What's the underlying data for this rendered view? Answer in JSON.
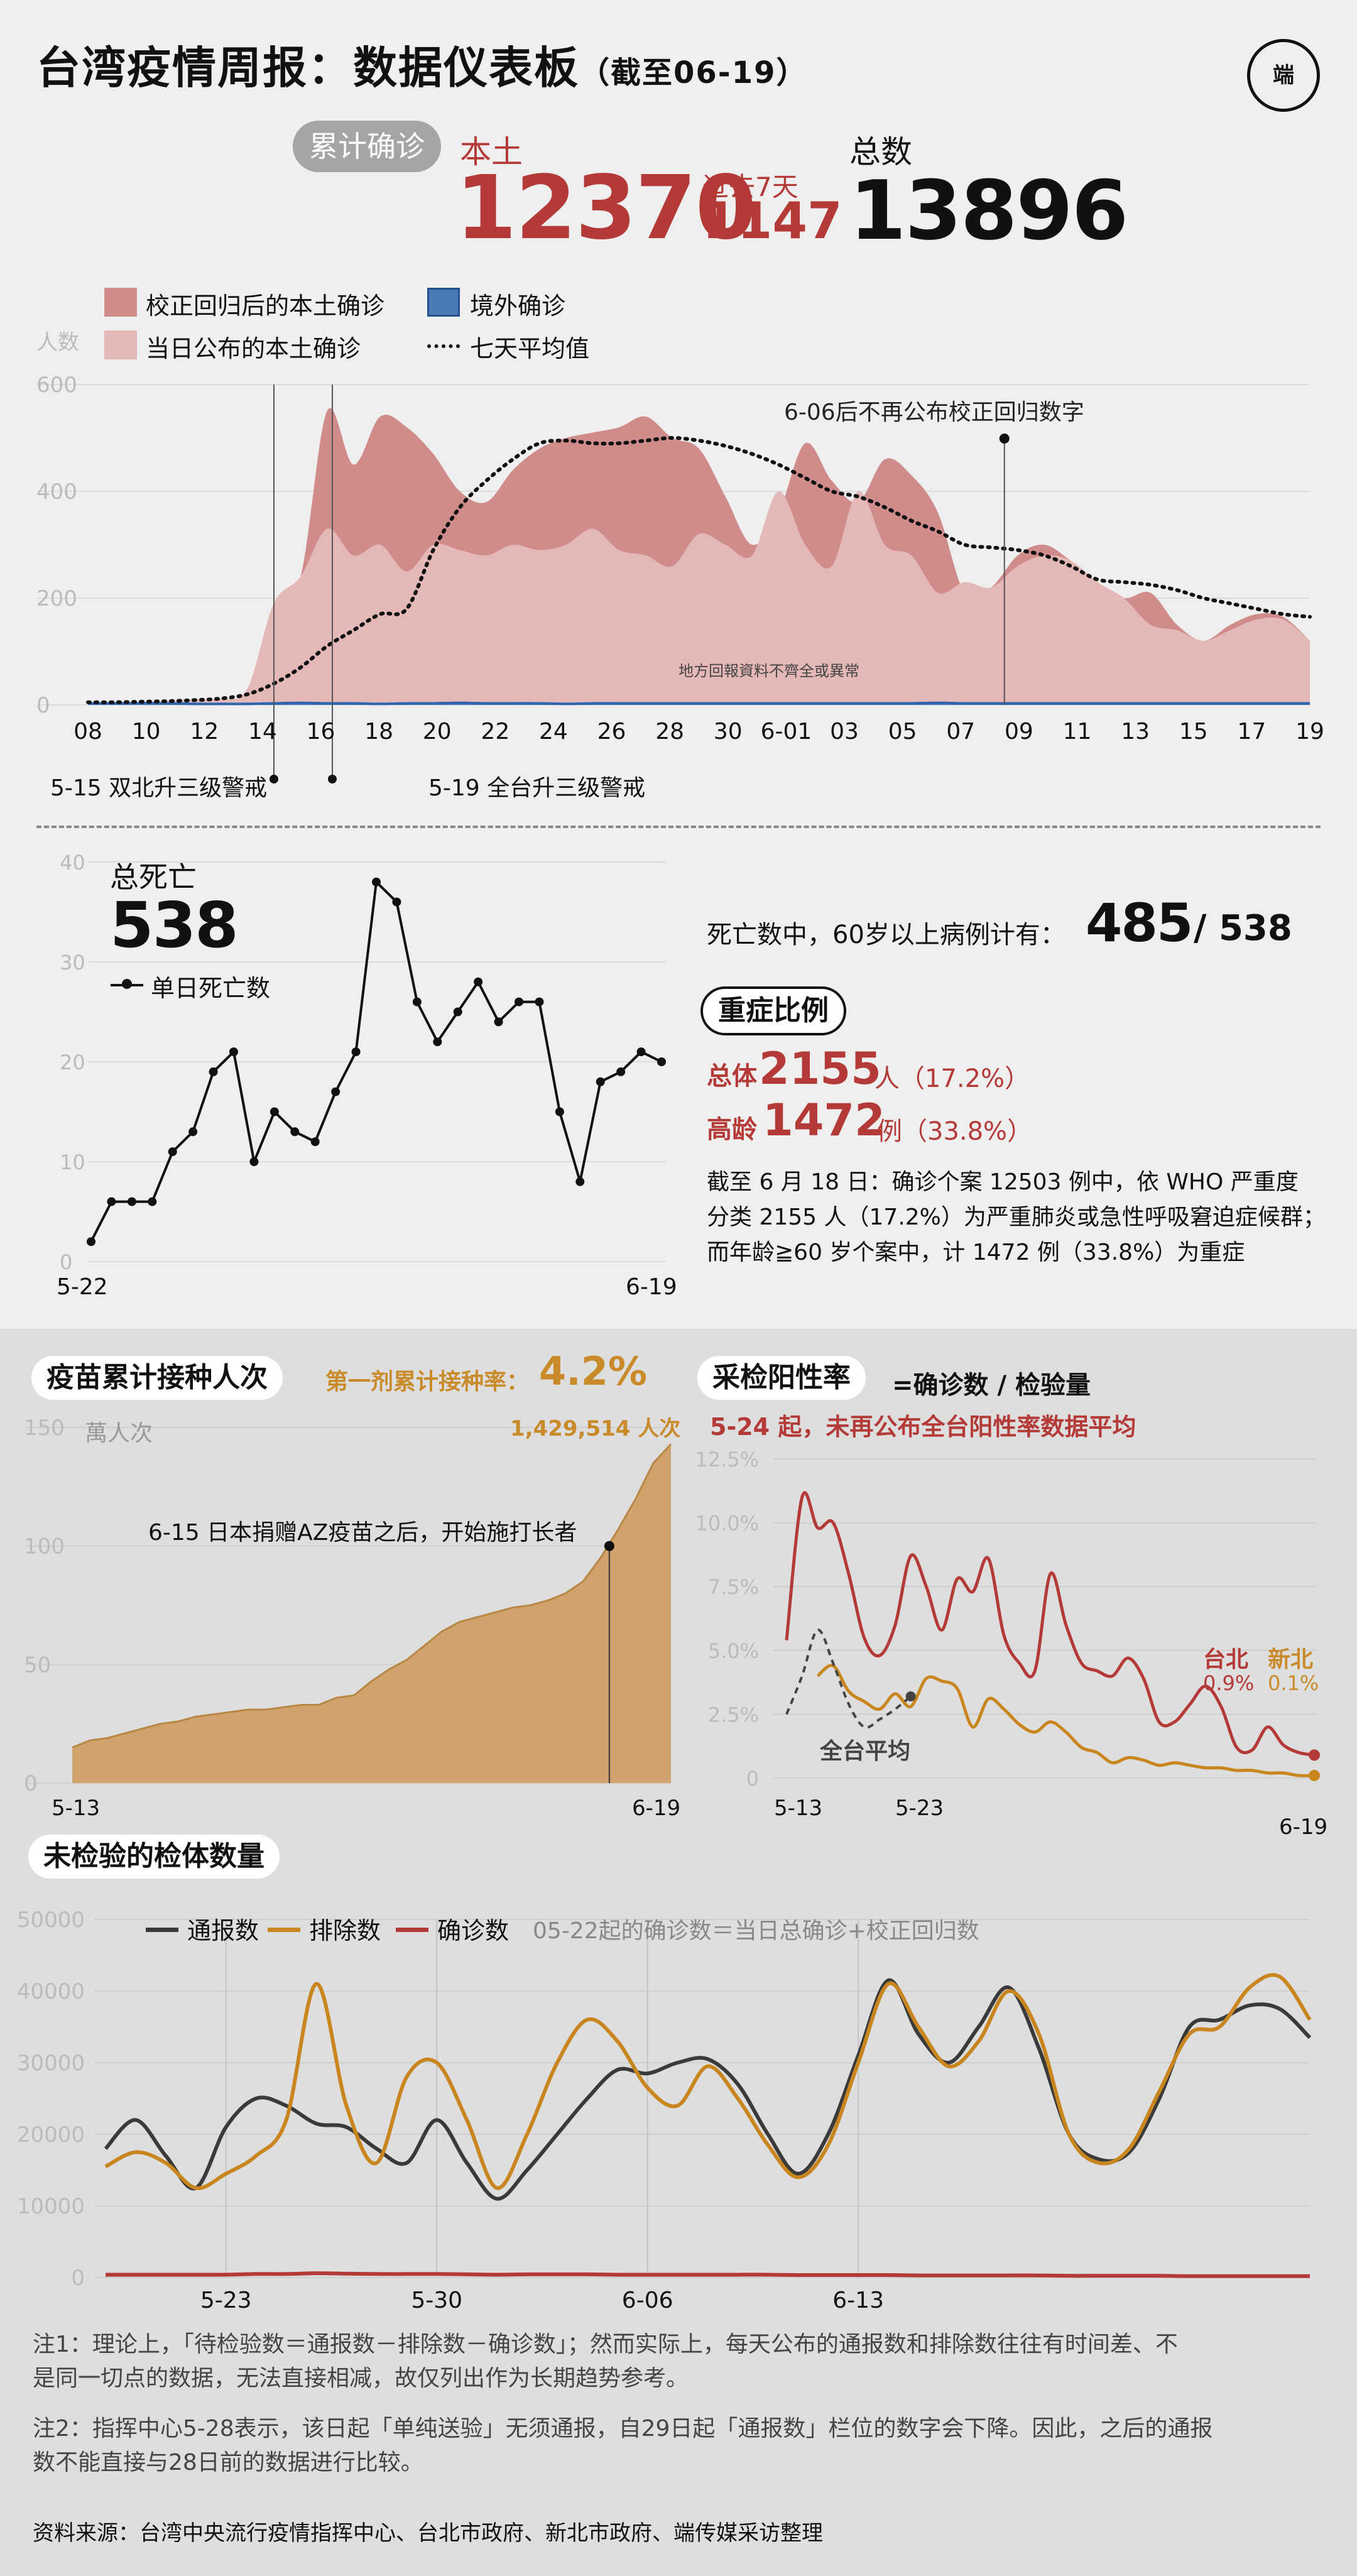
{
  "header": {
    "title": "台湾疫情周报：数据仪表板",
    "date_label": "（截至06-19）",
    "logo_text": "端"
  },
  "summary": {
    "cumulative_label": "累计确诊",
    "local_label": "本土",
    "local_value": "12370",
    "past7_label": "过去7天",
    "past7_value": "1147",
    "total_label": "总数",
    "total_value": "13896"
  },
  "chart_cases": {
    "legend": {
      "corrected": "校正回归后的本土确诊",
      "imported": "境外确诊",
      "reported": "当日公布的本土确诊",
      "avg7": "七天平均值"
    },
    "colors": {
      "corrected": "#cf8c8b",
      "reported": "#e3b8b6",
      "imported": "#4a7bb8",
      "avg": "#111111"
    },
    "y_unit": "人数",
    "annotation_stop": "6-06后不再公布校正回归数字",
    "annotation_incomplete": "地方回報資料不齊全或異常",
    "event1": "5-15 双北升三级警戒",
    "event2": "5-19 全台升三级警戒"
  },
  "deaths": {
    "title": "总死亡",
    "total": "538",
    "legend": "单日死亡数",
    "age_text": "死亡数中，60岁以上病例计有：",
    "age_value": "485",
    "age_total": "/ 538",
    "x_start": "5-22",
    "x_end": "6-19"
  },
  "severe": {
    "title": "重症比例",
    "overall_label": "总体",
    "overall_value": "2155",
    "overall_unit": "人（17.2%）",
    "elder_label": "高龄",
    "elder_value": "1472",
    "elder_unit": "例（33.8%）",
    "note_line1": "截至 6 月 18 日：确诊个案 12503 例中，依 WHO 严重度",
    "note_line2": "分类 2155 人（17.2%）为严重肺炎或急性呼吸窘迫症候群；",
    "note_line3": "而年龄≧60 岁个案中，计 1472 例（33.8%）为重症"
  },
  "vaccine": {
    "title": "疫苗累计接种人次",
    "rate_label": "第一剂累计接种率：",
    "rate_value": "4.2%",
    "unit": "萬人次",
    "end_value": "1,429,514 人次",
    "annotation": "6-15 日本捐赠AZ疫苗之后，开始施打长者",
    "x_start": "5-13",
    "x_end": "6-19",
    "color": "#d0a36d"
  },
  "positivity": {
    "title": "采检阳性率",
    "formula": "=确诊数 / 检验量",
    "note": "5-24 起，未再公布全台阳性率数据平均",
    "taipei_label": "台北",
    "taipei_value": "0.9%",
    "newtaipei_label": "新北",
    "newtaipei_value": "0.1%",
    "national_label": "全台平均",
    "x1": "5-13",
    "x2": "5-23",
    "x3": "6-19"
  },
  "untested": {
    "title": "未检验的检体数量",
    "legend_reported": "通报数",
    "legend_excluded": "排除数",
    "legend_confirmed": "确诊数",
    "legend_note": "05-22起的确诊数＝当日总确诊+校正回归数",
    "colors": {
      "reported": "#3a3a3a",
      "excluded": "#c9861f",
      "confirmed": "#b43a38"
    }
  },
  "notes": {
    "note1_line1": "注1：理论上，「待检验数＝通报数－排除数－确诊数」；然而实际上，每天公布的通报数和排除数往往有时间差、不",
    "note1_line2": "是同一切点的数据，无法直接相减，故仅列出作为长期趋势参考。",
    "note2_line1": "注2：指挥中心5-28表示，该日起「单纯送验」无须通报，自29日起「通报数」栏位的数字会下降。因此，之后的通报",
    "note2_line2": "数不能直接与28日前的数据进行比较。",
    "source": "资料来源：台湾中央流行疫情指挥中心、台北市政府、新北市政府、端传媒采访整理"
  },
  "chart_data": [
    {
      "type": "area",
      "name": "cases",
      "x_labels": [
        "08",
        "10",
        "12",
        "14",
        "16",
        "18",
        "20",
        "22",
        "24",
        "26",
        "28",
        "30",
        "6-01",
        "03",
        "05",
        "07",
        "09",
        "11",
        "13",
        "15",
        "17",
        "19"
      ],
      "ylim": [
        0,
        600
      ],
      "yticks": [
        0,
        200,
        400,
        600
      ],
      "series_corrected": [
        5,
        5,
        6,
        8,
        10,
        12,
        30,
        190,
        240,
        550,
        450,
        540,
        520,
        470,
        400,
        380,
        440,
        480,
        500,
        510,
        520,
        540,
        500,
        480,
        390,
        300,
        360,
        490,
        420,
        380,
        460,
        430,
        360,
        210,
        220,
        280,
        300,
        270,
        230,
        200,
        210,
        150,
        120,
        150,
        170,
        165,
        120
      ],
      "series_reported": [
        5,
        5,
        6,
        8,
        10,
        12,
        30,
        190,
        240,
        330,
        280,
        300,
        250,
        300,
        290,
        280,
        300,
        290,
        300,
        330,
        290,
        280,
        260,
        320,
        300,
        280,
        400,
        300,
        260,
        400,
        300,
        280,
        210,
        230,
        220,
        260,
        280,
        270,
        230,
        200,
        150,
        140,
        120,
        140,
        160,
        160,
        120
      ],
      "series_imported": [
        3,
        3,
        3,
        3,
        2,
        2,
        2,
        3,
        4,
        3,
        3,
        2,
        3,
        3,
        4,
        3,
        3,
        3,
        2,
        3,
        3,
        3,
        3,
        3,
        3,
        3,
        3,
        3,
        3,
        3,
        3,
        3,
        4,
        3,
        3,
        3,
        3,
        3,
        3,
        3,
        3,
        3,
        3,
        3,
        3,
        3,
        3
      ],
      "series_avg7": [
        5,
        5,
        6,
        7,
        9,
        12,
        20,
        40,
        70,
        110,
        140,
        170,
        180,
        290,
        370,
        420,
        460,
        490,
        495,
        490,
        490,
        495,
        500,
        495,
        485,
        470,
        450,
        425,
        400,
        390,
        370,
        345,
        325,
        300,
        295,
        290,
        280,
        260,
        235,
        230,
        225,
        215,
        200,
        190,
        180,
        170,
        165
      ]
    },
    {
      "type": "line",
      "name": "deaths",
      "x_labels": [
        "5-22",
        "6-19"
      ],
      "ylim": [
        0,
        40
      ],
      "yticks": [
        0,
        10,
        20,
        30,
        40
      ],
      "values": [
        2,
        6,
        6,
        6,
        11,
        13,
        19,
        21,
        10,
        15,
        13,
        12,
        17,
        21,
        38,
        36,
        26,
        22,
        25,
        28,
        24,
        26,
        26,
        15,
        8,
        18,
        19,
        21,
        20
      ]
    },
    {
      "type": "area",
      "name": "vaccine",
      "x_labels": [
        "5-13",
        "6-19"
      ],
      "ylim": [
        0,
        150
      ],
      "yticks": [
        0,
        50,
        100,
        150
      ],
      "values": [
        15,
        18,
        19,
        21,
        23,
        25,
        26,
        28,
        29,
        30,
        31,
        31,
        32,
        33,
        33,
        36,
        37,
        43,
        48,
        52,
        58,
        64,
        68,
        70,
        72,
        74,
        75,
        77,
        80,
        85,
        95,
        107,
        120,
        135,
        143
      ]
    },
    {
      "type": "line",
      "name": "positivity",
      "x_labels": [
        "5-13",
        "5-23",
        "6-19"
      ],
      "ylim": [
        0,
        12.5
      ],
      "yticks": [
        0,
        2.5,
        5.0,
        7.5,
        10.0,
        12.5
      ],
      "series": [
        {
          "name": "台北",
          "values": [
            5.4,
            11.0,
            9.8,
            10.0,
            8.0,
            5.5,
            4.8,
            6.0,
            8.7,
            7.5,
            5.8,
            7.8,
            7.3,
            8.6,
            5.6,
            4.5,
            4.2,
            8.0,
            6.0,
            4.5,
            4.2,
            4.0,
            4.7,
            3.9,
            2.2,
            2.2,
            2.9,
            3.6,
            2.8,
            1.2,
            1.1,
            2.0,
            1.3,
            1.0,
            0.9
          ]
        },
        {
          "name": "新北",
          "values": [
            null,
            null,
            4.0,
            4.4,
            3.4,
            3.0,
            2.7,
            3.3,
            2.8,
            3.9,
            3.8,
            3.5,
            2.0,
            3.1,
            2.7,
            2.1,
            1.8,
            2.2,
            1.8,
            1.2,
            1.0,
            0.6,
            0.8,
            0.7,
            0.5,
            0.6,
            0.5,
            0.4,
            0.4,
            0.3,
            0.3,
            0.2,
            0.2,
            0.1,
            0.1
          ]
        },
        {
          "name": "全台平均",
          "values": [
            2.5,
            4.0,
            5.8,
            4.5,
            2.9,
            2.0,
            2.3,
            2.7,
            3.2
          ]
        }
      ]
    },
    {
      "type": "line",
      "name": "untested",
      "x_labels": [
        "5-23",
        "5-30",
        "6-06",
        "6-13"
      ],
      "ylim": [
        0,
        50000
      ],
      "yticks": [
        0,
        10000,
        20000,
        30000,
        40000,
        50000
      ],
      "series": [
        {
          "name": "通报数",
          "values": [
            18000,
            22000,
            17000,
            12500,
            21000,
            25000,
            24000,
            21500,
            21000,
            18000,
            16000,
            22000,
            16000,
            11000,
            15000,
            20000,
            25000,
            29000,
            28500,
            30000,
            30500,
            27000,
            20000,
            14500,
            20000,
            31000,
            41500,
            34000,
            30000,
            35000,
            40500,
            32000,
            20000,
            16500,
            17500,
            25000,
            35000,
            36000,
            38000,
            37500,
            33500
          ]
        },
        {
          "name": "排除数",
          "values": [
            15500,
            17500,
            16000,
            12500,
            14500,
            17000,
            22000,
            41000,
            24000,
            16000,
            28000,
            30000,
            22000,
            12500,
            20000,
            30000,
            36000,
            33000,
            26500,
            24000,
            29500,
            25000,
            18500,
            14000,
            18500,
            30000,
            41000,
            35000,
            29500,
            33000,
            40000,
            34000,
            20000,
            16000,
            18000,
            26000,
            34000,
            35000,
            40500,
            42000,
            36000
          ]
        },
        {
          "name": "确诊数",
          "values": [
            400,
            400,
            400,
            400,
            400,
            500,
            500,
            600,
            550,
            500,
            500,
            500,
            450,
            400,
            450,
            450,
            450,
            400,
            400,
            400,
            400,
            400,
            400,
            350,
            350,
            350,
            350,
            300,
            300,
            300,
            300,
            300,
            250,
            250,
            250,
            250,
            200,
            200,
            200,
            200,
            200
          ]
        }
      ]
    }
  ]
}
